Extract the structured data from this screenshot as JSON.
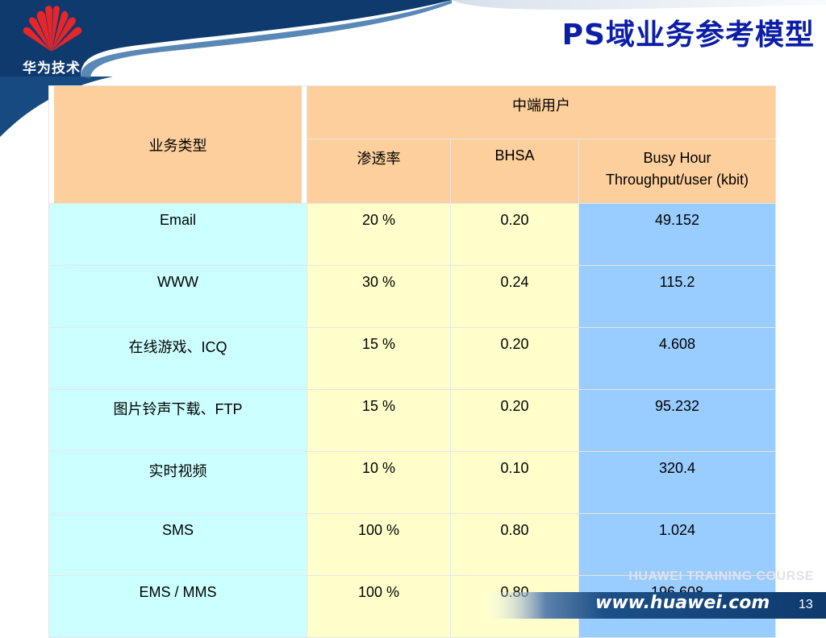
{
  "header": {
    "title": "PS域业务参考模型",
    "logo_text": "华为技术"
  },
  "table": {
    "col_type_header": "业务类型",
    "group_header": "中端用户",
    "sub_headers": {
      "penetration": "渗透率",
      "bhsa": "BHSA",
      "throughput_line1": "Busy Hour",
      "throughput_line2": "Throughput/user (kbit)"
    },
    "rows": [
      {
        "type": "Email",
        "penetration": "20 %",
        "bhsa": "0.20",
        "throughput": "49.152"
      },
      {
        "type": "WWW",
        "penetration": "30 %",
        "bhsa": "0.24",
        "throughput": "115.2"
      },
      {
        "type": "在线游戏、ICQ",
        "penetration": "15 %",
        "bhsa": "0.20",
        "throughput": "4.608"
      },
      {
        "type": "图片铃声下载、FTP",
        "penetration": "15 %",
        "bhsa": "0.20",
        "throughput": "95.232"
      },
      {
        "type": "实时视频",
        "penetration": "10 %",
        "bhsa": "0.10",
        "throughput": "320.4"
      },
      {
        "type": "SMS",
        "penetration": "100 %",
        "bhsa": "0.80",
        "throughput": "1.024"
      },
      {
        "type": "EMS / MMS",
        "penetration": "100 %",
        "bhsa": "0.80",
        "throughput": "196.608"
      }
    ]
  },
  "footer": {
    "watermark": "HUAWEI TRAINING COURSE",
    "website": "www.huawei.com",
    "page_number": "13"
  },
  "colors": {
    "title": "#0b1ea6",
    "header_cell": "#fccf9c",
    "type_cell": "#ccffff",
    "value_cell": "#ffffcc",
    "throughput_cell": "#99ccff",
    "brand_red": "#e8262a",
    "navy": "#0e3a6e"
  }
}
